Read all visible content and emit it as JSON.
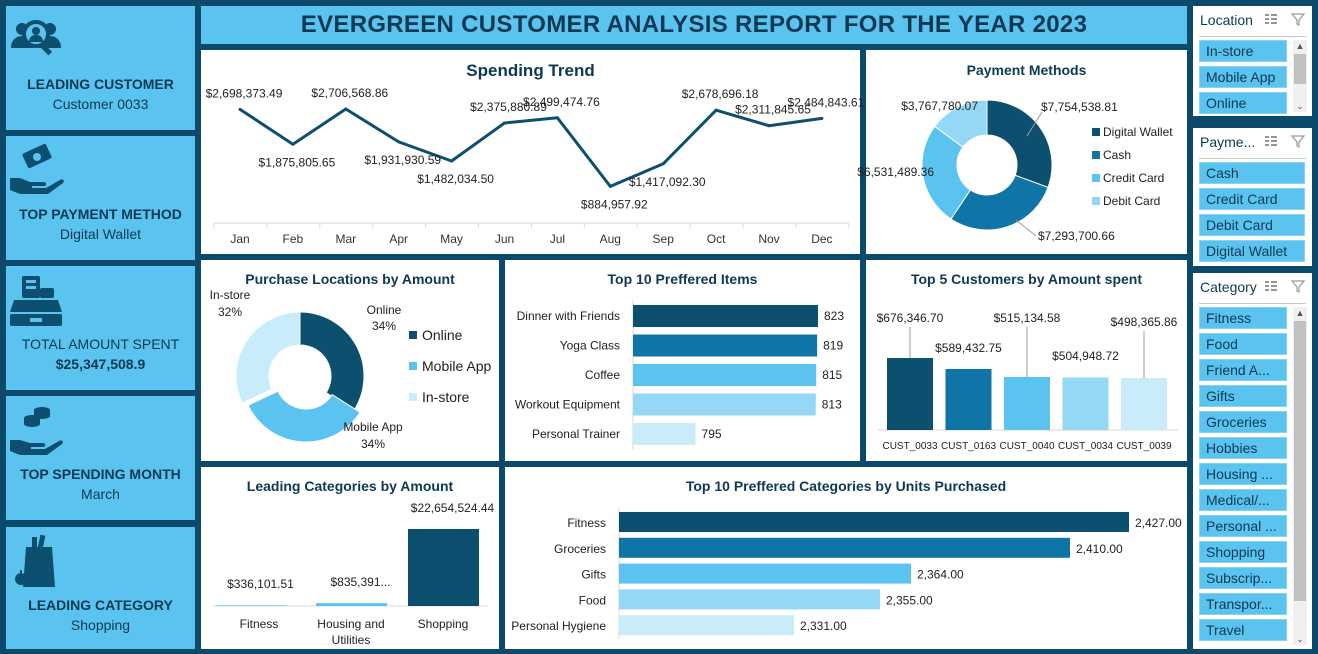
{
  "report_title": "EVERGREEN CUSTOMER ANALYSIS REPORT FOR THE YEAR 2023",
  "kpis": [
    {
      "label": "LEADING CUSTOMER",
      "value": "Customer 0033",
      "icon": "customer-search-icon"
    },
    {
      "label": "TOP PAYMENT METHOD",
      "value": "Digital Wallet",
      "icon": "cash-hand-icon"
    },
    {
      "label": "TOTAL AMOUNT SPENT",
      "value": "$25,347,508.9",
      "icon": "cash-register-icon"
    },
    {
      "label": "TOP SPENDING MONTH",
      "value": "March",
      "icon": "coins-hand-icon"
    },
    {
      "label": "LEADING CATEGORY",
      "value": "Shopping",
      "icon": "grocery-bag-icon"
    }
  ],
  "colors": {
    "dark": "#0d4f6e",
    "mid": "#0f74a6",
    "light": "#5bc3ef",
    "lighter": "#94d8f5",
    "lightest": "#c9ecfa",
    "header": "#5bc3ef",
    "bg": "#0b4a6b"
  },
  "chart_data": [
    {
      "id": "spending_trend",
      "type": "line",
      "title": "Spending Trend",
      "categories": [
        "Jan",
        "Feb",
        "Mar",
        "Apr",
        "May",
        "Jun",
        "Jul",
        "Aug",
        "Sep",
        "Oct",
        "Nov",
        "Dec"
      ],
      "values": [
        2698373.49,
        1875805.65,
        2706568.86,
        1931930.59,
        1482034.5,
        2375880.89,
        2499474.76,
        884957.92,
        1417092.3,
        2678696.18,
        2311845.65,
        2484843.61
      ],
      "data_labels": [
        "$2,698,373.49",
        "$1,875,805.65",
        "$2,706,568.86",
        "$1,931,930.59",
        "$1,482,034.50",
        "$2,375,880.89",
        "$2,499,474.76",
        "$884,957.92",
        "$1,417,092.30",
        "$2,678,696.18",
        "$2,311,845.65",
        "$2,484,843.61"
      ]
    },
    {
      "id": "payment_methods",
      "type": "pie",
      "title": "Payment Methods",
      "categories": [
        "Digital Wallet",
        "Cash",
        "Credit Card",
        "Debit Card"
      ],
      "values": [
        7754538.81,
        7293700.66,
        6531489.36,
        3767780.07
      ],
      "data_labels": [
        "$7,754,538.81",
        "$7,293,700.66",
        "$6,531,489.36",
        "$3,767,780.07"
      ],
      "legend": "right"
    },
    {
      "id": "purchase_locations",
      "type": "pie",
      "title": "Purchase Locations by Amount",
      "categories": [
        "Online",
        "Mobile App",
        "In-store"
      ],
      "values": [
        34,
        34,
        32
      ],
      "data_labels": [
        "34%",
        "34%",
        "32%"
      ],
      "legend": "right"
    },
    {
      "id": "top_items",
      "type": "bar",
      "title": "Top 10  Preffered Items",
      "categories": [
        "Dinner with Friends",
        "Yoga Class",
        "Coffee",
        "Workout Equipment",
        "Personal Trainer"
      ],
      "values": [
        823,
        819,
        815,
        813,
        795
      ],
      "orientation": "horizontal"
    },
    {
      "id": "top_customers",
      "type": "bar",
      "title": "Top 5 Customers by Amount spent",
      "categories": [
        "CUST_0033",
        "CUST_0163",
        "CUST_0040",
        "CUST_0034",
        "CUST_0039"
      ],
      "values": [
        676346.7,
        589432.75,
        515134.58,
        504948.72,
        498365.86
      ],
      "data_labels": [
        "$676,346.70",
        "$589,432.75",
        "$515,134.58",
        "$504,948.72",
        "$498,365.86"
      ]
    },
    {
      "id": "leading_categories",
      "type": "bar",
      "title": "Leading Categories by Amount",
      "categories": [
        "Fitness",
        "Housing and Utilities",
        "Shopping"
      ],
      "values": [
        336101.51,
        835391,
        22654524.44
      ],
      "data_labels": [
        "$336,101.51",
        "$835,391...",
        "$22,654,524.44"
      ]
    },
    {
      "id": "top_categories_units",
      "type": "bar",
      "title": "Top 10 Preffered Categories by Units Purchased",
      "categories": [
        "Fitness",
        "Groceries",
        "Gifts",
        "Food",
        "Personal Hygiene"
      ],
      "values": [
        2427,
        2410,
        2364,
        2355,
        2331
      ],
      "data_labels": [
        "2,427.00",
        "2,410.00",
        "2,364.00",
        "2,355.00",
        "2,331.00"
      ],
      "orientation": "horizontal"
    }
  ],
  "slicers": [
    {
      "title": "Location",
      "items": [
        "In-store",
        "Mobile App",
        "Online"
      ],
      "scrollbar": true
    },
    {
      "title": "Payme...",
      "items": [
        "Cash",
        "Credit Card",
        "Debit Card",
        "Digital Wallet"
      ],
      "scrollbar": false
    },
    {
      "title": "Category",
      "items": [
        "Fitness",
        "Food",
        "Friend A...",
        "Gifts",
        "Groceries",
        "Hobbies",
        "Housing ...",
        "Medical/...",
        "Personal ...",
        "Shopping",
        "Subscrip...",
        "Transpor...",
        "Travel"
      ],
      "scrollbar": true
    }
  ]
}
